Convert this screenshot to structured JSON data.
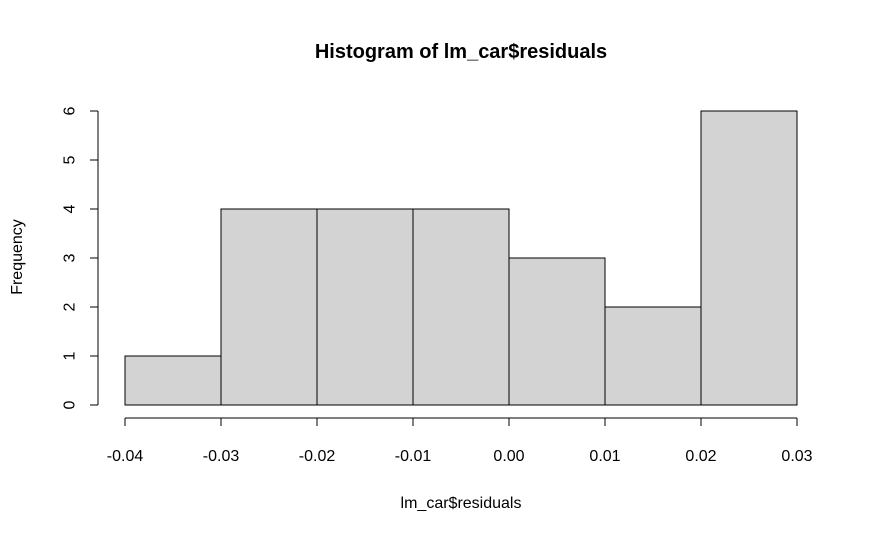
{
  "chart_data": {
    "type": "bar",
    "title": "Histogram of lm_car$residuals",
    "xlabel": "lm_car$residuals",
    "ylabel": "Frequency",
    "bins": [
      {
        "from": -0.04,
        "to": -0.03,
        "count": 1
      },
      {
        "from": -0.03,
        "to": -0.02,
        "count": 4
      },
      {
        "from": -0.02,
        "to": -0.01,
        "count": 4
      },
      {
        "from": -0.01,
        "to": 0.0,
        "count": 4
      },
      {
        "from": 0.0,
        "to": 0.01,
        "count": 3
      },
      {
        "from": 0.01,
        "to": 0.02,
        "count": 2
      },
      {
        "from": 0.02,
        "to": 0.03,
        "count": 6
      }
    ],
    "xlim": [
      -0.04,
      0.03
    ],
    "ylim": [
      0,
      6
    ],
    "x_ticks": [
      "-0.04",
      "-0.03",
      "-0.02",
      "-0.01",
      "0.00",
      "0.01",
      "0.02",
      "0.03"
    ],
    "y_ticks": [
      "0",
      "1",
      "2",
      "3",
      "4",
      "5",
      "6"
    ],
    "bar_fill": "#d3d3d3",
    "bar_stroke": "#000000",
    "grid": false,
    "legend": "none"
  }
}
